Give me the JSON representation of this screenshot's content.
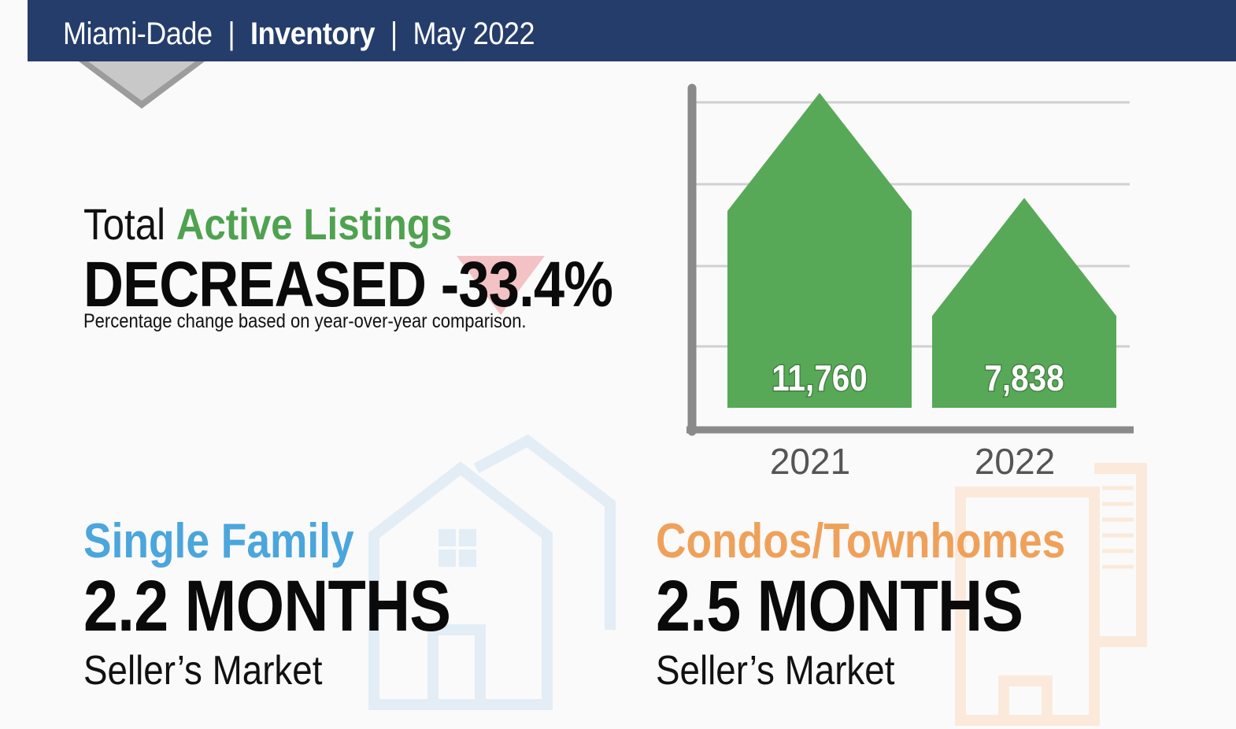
{
  "header": {
    "region": "Miami-Dade",
    "separator": "|",
    "topic": "Inventory",
    "period": "May 2022"
  },
  "summary": {
    "title_prefix": "Total",
    "title_accent": "Active Listings",
    "headline": "DECREASED -33.4%",
    "note": "Percentage change based on year-over-year comparison."
  },
  "segments": [
    {
      "label": "Single Family",
      "value": "2.2 MONTHS",
      "status": "Seller’s Market",
      "color": "#4aa6dc"
    },
    {
      "label": "Condos/Townhomes",
      "value": "2.5 MONTHS",
      "status": "Seller’s Market",
      "color": "#efa15a"
    }
  ],
  "colors": {
    "header_bg": "#243d6b",
    "bar": "#57a957",
    "accent_green": "#4fa24f"
  },
  "chart_data": {
    "type": "bar",
    "categories": [
      "2021",
      "2022"
    ],
    "values": [
      11760,
      7838
    ],
    "data_labels": [
      "11,760",
      "7,838"
    ],
    "title": "",
    "xlabel": "",
    "ylabel": "",
    "grid": true
  }
}
